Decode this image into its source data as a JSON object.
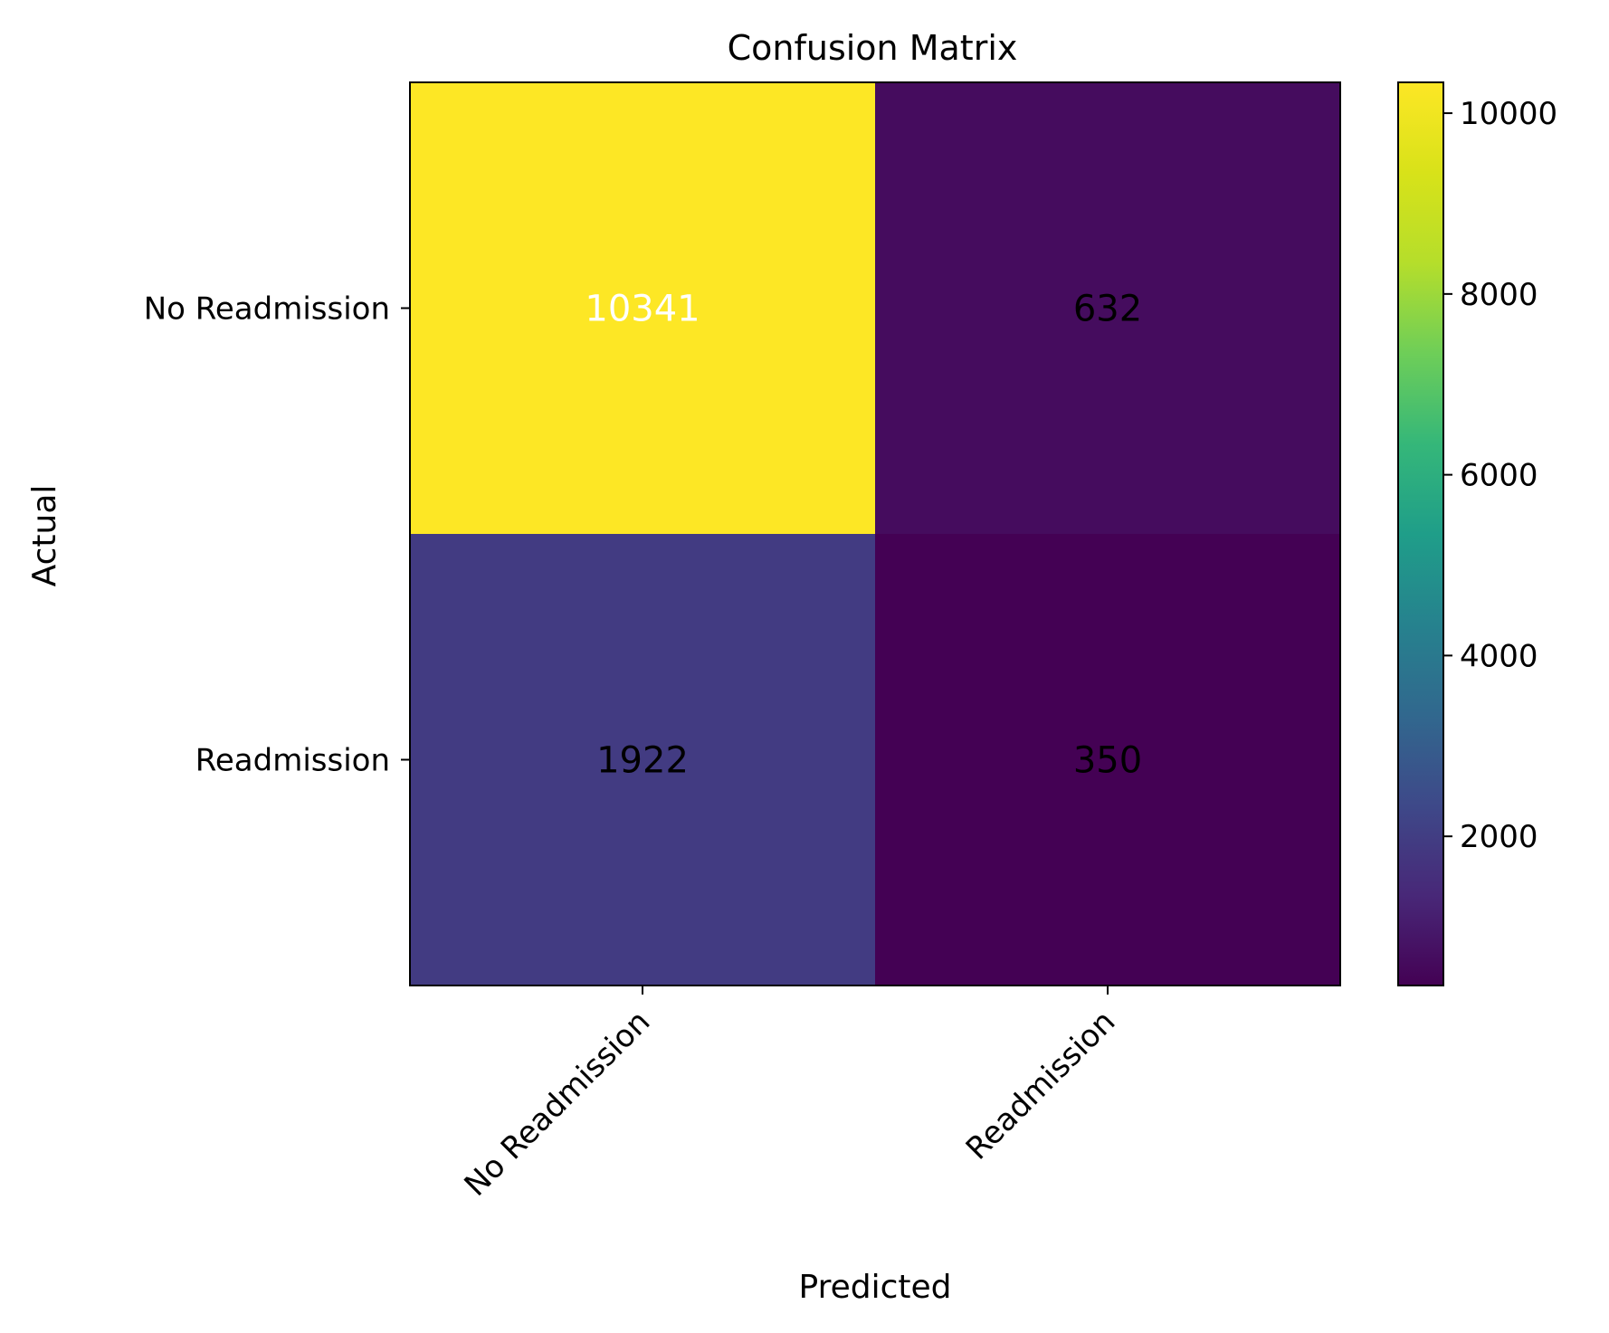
{
  "chart_data": {
    "type": "heatmap",
    "title": "Confusion Matrix",
    "xlabel": "Predicted",
    "ylabel": "Actual",
    "x_categories": [
      "No Readmission",
      "Readmission"
    ],
    "y_categories": [
      "No Readmission",
      "Readmission"
    ],
    "values": [
      [
        10341,
        632
      ],
      [
        1922,
        350
      ]
    ],
    "cell_text_colors": [
      [
        "#ffffff",
        "#000000"
      ],
      [
        "#000000",
        "#000000"
      ]
    ],
    "colormap": "viridis",
    "colorbar": {
      "vmin": 350,
      "vmax": 10341,
      "ticks": [
        2000,
        4000,
        6000,
        8000,
        10000
      ],
      "tick_labels": [
        "2000",
        "4000",
        "6000",
        "8000",
        "10000"
      ]
    },
    "grid": false,
    "x_tick_rotation_deg": 45
  }
}
